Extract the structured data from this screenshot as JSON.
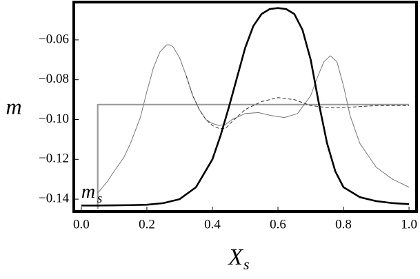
{
  "chart_data": {
    "type": "line",
    "x_label": {
      "text": "X",
      "sub": "s"
    },
    "y_label": "m",
    "annotation": {
      "text": "m",
      "sub": "s",
      "x": 0.0,
      "y": -0.137
    },
    "xlim": [
      -0.023,
      1.023
    ],
    "ylim": [
      -0.1462,
      -0.041
    ],
    "xticks": [
      {
        "value": 0,
        "label": "0.0"
      },
      0.2,
      0.4,
      0.6,
      0.8,
      {
        "value": 1,
        "label": "1.0"
      }
    ],
    "yticks": [
      {
        "value": -0.06,
        "label": "−0.06"
      },
      {
        "value": -0.08,
        "label": "−0.08"
      },
      {
        "value": -0.1,
        "label": "−0.10"
      },
      {
        "value": -0.12,
        "label": "−0.12"
      },
      {
        "value": -0.14,
        "label": "−0.14"
      }
    ],
    "series": [
      {
        "color": "#999999",
        "width": 2.2,
        "dash": "none",
        "x": [
          0.05,
          0.05,
          1.0
        ],
        "values": [
          -0.145,
          -0.0925,
          -0.0925
        ]
      },
      {
        "color": "#777777",
        "width": 1,
        "dash": "none",
        "x": [
          0.05,
          0.08,
          0.1,
          0.13,
          0.15,
          0.18,
          0.2,
          0.22,
          0.24,
          0.26,
          0.27,
          0.28,
          0.3,
          0.32,
          0.34,
          0.36,
          0.38,
          0.4,
          0.42,
          0.44,
          0.46,
          0.5,
          0.54,
          0.58,
          0.62,
          0.66,
          0.7,
          0.72,
          0.74,
          0.76,
          0.78,
          0.8,
          0.82,
          0.85,
          0.9,
          0.95,
          1.0
        ],
        "values": [
          -0.137,
          -0.131,
          -0.126,
          -0.119,
          -0.112,
          -0.099,
          -0.086,
          -0.074,
          -0.066,
          -0.0625,
          -0.0625,
          -0.0635,
          -0.069,
          -0.078,
          -0.088,
          -0.095,
          -0.1,
          -0.102,
          -0.103,
          -0.1025,
          -0.1,
          -0.097,
          -0.0965,
          -0.098,
          -0.099,
          -0.097,
          -0.088,
          -0.079,
          -0.071,
          -0.068,
          -0.071,
          -0.083,
          -0.098,
          -0.112,
          -0.124,
          -0.13,
          -0.134
        ]
      },
      {
        "color": "#333333",
        "width": 1,
        "dash": "5,3",
        "x": [
          0.32,
          0.34,
          0.36,
          0.38,
          0.4,
          0.42,
          0.44,
          0.46,
          0.5,
          0.55,
          0.6,
          0.65,
          0.7,
          0.75,
          0.8,
          0.9,
          1.0
        ],
        "values": [
          -0.078,
          -0.088,
          -0.095,
          -0.1,
          -0.103,
          -0.1045,
          -0.1045,
          -0.101,
          -0.095,
          -0.091,
          -0.089,
          -0.09,
          -0.093,
          -0.094,
          -0.094,
          -0.093,
          -0.093
        ]
      },
      {
        "color": "#000000",
        "width": 2.6,
        "dash": "none",
        "x": [
          0,
          0.05,
          0.1,
          0.15,
          0.2,
          0.25,
          0.3,
          0.35,
          0.4,
          0.425,
          0.45,
          0.475,
          0.5,
          0.525,
          0.55,
          0.575,
          0.6,
          0.625,
          0.65,
          0.675,
          0.7,
          0.725,
          0.75,
          0.775,
          0.8,
          0.85,
          0.9,
          0.95,
          1.0
        ],
        "values": [
          -0.1432,
          -0.1432,
          -0.1431,
          -0.143,
          -0.1428,
          -0.142,
          -0.14,
          -0.134,
          -0.12,
          -0.108,
          -0.094,
          -0.079,
          -0.064,
          -0.053,
          -0.047,
          -0.0445,
          -0.044,
          -0.0445,
          -0.047,
          -0.055,
          -0.07,
          -0.092,
          -0.112,
          -0.126,
          -0.134,
          -0.139,
          -0.141,
          -0.142,
          -0.1425
        ]
      }
    ]
  }
}
